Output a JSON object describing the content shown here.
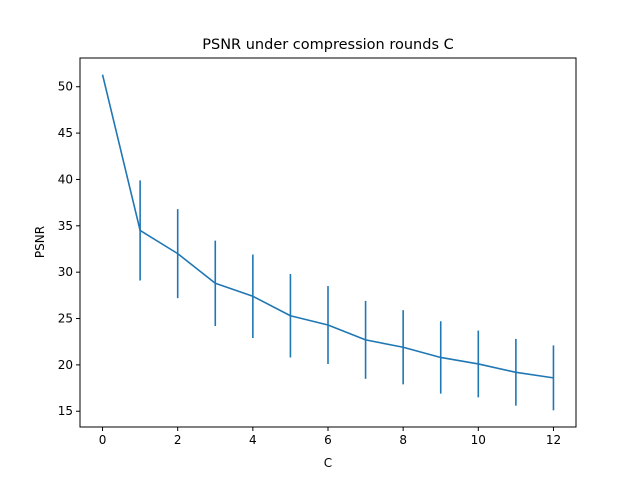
{
  "chart_data": {
    "type": "line",
    "title": "PSNR under compression rounds C",
    "xlabel": "C",
    "ylabel": "PSNR",
    "xlim": [
      -0.6,
      12.6
    ],
    "ylim": [
      13.3,
      53.1
    ],
    "xticks": [
      0,
      2,
      4,
      6,
      8,
      10,
      12
    ],
    "yticks": [
      15,
      20,
      25,
      30,
      35,
      40,
      45,
      50
    ],
    "grid": false,
    "legend": "none",
    "series": [
      {
        "color": "#1f77b4",
        "x": [
          0,
          1,
          2,
          3,
          4,
          5,
          6,
          7,
          8,
          9,
          10,
          11,
          12
        ],
        "y": [
          51.3,
          34.5,
          32.0,
          28.8,
          27.4,
          25.3,
          24.3,
          22.7,
          21.9,
          20.8,
          20.1,
          19.2,
          18.6
        ],
        "yerr": [
          0.0,
          5.4,
          4.8,
          4.6,
          4.5,
          4.5,
          4.2,
          4.2,
          4.0,
          3.9,
          3.6,
          3.6,
          3.5
        ]
      }
    ]
  }
}
